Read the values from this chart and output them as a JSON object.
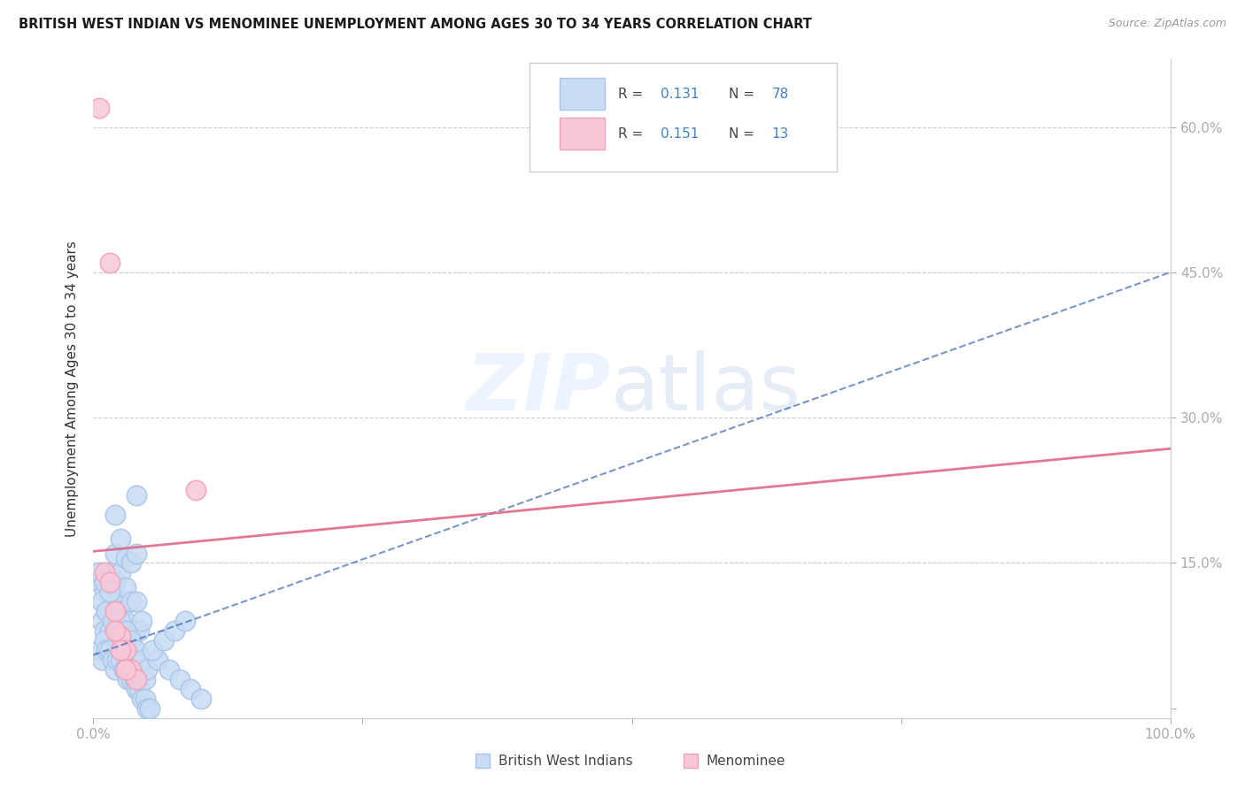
{
  "title": "BRITISH WEST INDIAN VS MENOMINEE UNEMPLOYMENT AMONG AGES 30 TO 34 YEARS CORRELATION CHART",
  "source": "Source: ZipAtlas.com",
  "ylabel": "Unemployment Among Ages 30 to 34 years",
  "xlim": [
    0.0,
    1.0
  ],
  "ylim": [
    -0.01,
    0.67
  ],
  "blue_color": "#a8c4e8",
  "blue_fill": "#c8dcf4",
  "pink_color": "#f4a0b8",
  "pink_fill": "#f8c8d8",
  "blue_line_color": "#3060a8",
  "pink_line_color": "#e06888",
  "value_color": "#4080c8",
  "label_color": "#444444",
  "grid_color": "#cccccc",
  "blue_line_y0": 0.055,
  "blue_line_y1": 0.45,
  "pink_line_y0": 0.162,
  "pink_line_y1": 0.268,
  "ytick_positions": [
    0.0,
    0.15,
    0.3,
    0.45,
    0.6
  ],
  "ytick_labels": [
    "",
    "15.0%",
    "30.0%",
    "45.0%",
    "60.0%"
  ],
  "grid_lines": [
    0.15,
    0.3,
    0.45,
    0.6
  ],
  "xtick_positions": [
    0.0,
    0.25,
    0.5,
    0.75,
    1.0
  ],
  "xtick_labels": [
    "0.0%",
    "",
    "",
    "",
    "100.0%"
  ],
  "legend_r1": "0.131",
  "legend_n1": "78",
  "legend_r2": "0.151",
  "legend_n2": "13",
  "blue_scatter_x": [
    0.005,
    0.008,
    0.01,
    0.01,
    0.012,
    0.015,
    0.015,
    0.015,
    0.018,
    0.02,
    0.02,
    0.02,
    0.02,
    0.022,
    0.025,
    0.025,
    0.025,
    0.028,
    0.03,
    0.03,
    0.03,
    0.032,
    0.035,
    0.035,
    0.038,
    0.04,
    0.04,
    0.04,
    0.042,
    0.045,
    0.005,
    0.008,
    0.01,
    0.012,
    0.015,
    0.018,
    0.02,
    0.022,
    0.025,
    0.028,
    0.03,
    0.032,
    0.035,
    0.038,
    0.04,
    0.042,
    0.045,
    0.048,
    0.05,
    0.052,
    0.005,
    0.008,
    0.01,
    0.012,
    0.015,
    0.018,
    0.02,
    0.022,
    0.025,
    0.028,
    0.03,
    0.032,
    0.035,
    0.038,
    0.04,
    0.042,
    0.045,
    0.048,
    0.05,
    0.06,
    0.07,
    0.08,
    0.09,
    0.1,
    0.055,
    0.065,
    0.075,
    0.085
  ],
  "blue_scatter_y": [
    0.13,
    0.09,
    0.12,
    0.08,
    0.1,
    0.14,
    0.1,
    0.08,
    0.12,
    0.2,
    0.16,
    0.13,
    0.09,
    0.11,
    0.175,
    0.14,
    0.1,
    0.08,
    0.155,
    0.125,
    0.09,
    0.07,
    0.15,
    0.11,
    0.08,
    0.22,
    0.16,
    0.11,
    0.08,
    0.09,
    0.06,
    0.05,
    0.07,
    0.06,
    0.06,
    0.05,
    0.04,
    0.05,
    0.05,
    0.04,
    0.04,
    0.03,
    0.03,
    0.03,
    0.02,
    0.02,
    0.01,
    0.01,
    0.0,
    0.0,
    0.14,
    0.11,
    0.13,
    0.1,
    0.12,
    0.09,
    0.1,
    0.08,
    0.09,
    0.07,
    0.08,
    0.06,
    0.07,
    0.05,
    0.06,
    0.04,
    0.05,
    0.03,
    0.04,
    0.05,
    0.04,
    0.03,
    0.02,
    0.01,
    0.06,
    0.07,
    0.08,
    0.09
  ],
  "pink_scatter_x": [
    0.005,
    0.01,
    0.015,
    0.02,
    0.025,
    0.03,
    0.035,
    0.04,
    0.015,
    0.02,
    0.025,
    0.03,
    0.095
  ],
  "pink_scatter_y": [
    0.62,
    0.14,
    0.13,
    0.1,
    0.075,
    0.06,
    0.04,
    0.03,
    0.46,
    0.08,
    0.06,
    0.04,
    0.225
  ]
}
